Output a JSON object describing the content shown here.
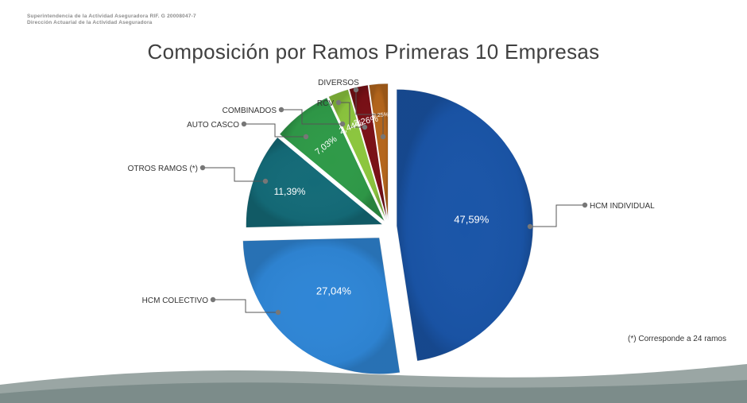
{
  "header": {
    "line1": "Superintendencia de la Actividad Aseguradora RIF. G 20008047-7",
    "line2": "Dirección Actuarial de la Actividad Aseguradora"
  },
  "footnote": "(*) Corresponde a 24 ramos",
  "chart_data": {
    "type": "pie",
    "title": "Composición por Ramos Primeras 10 Empresas",
    "slices": [
      {
        "label": "HCM INDIVIDUAL",
        "value": 47.59,
        "value_label": "47,59%",
        "color": "#1a55a8"
      },
      {
        "label": "HCM COLECTIVO",
        "value": 27.04,
        "value_label": "27,04%",
        "color": "#2f86d6"
      },
      {
        "label": "OTROS RAMOS (*)",
        "value": 11.39,
        "value_label": "11,39%",
        "color": "#146b78"
      },
      {
        "label": "AUTO CASCO",
        "value": 7.03,
        "value_label": "7,03%",
        "color": "#2f9a48"
      },
      {
        "label": "COMBINADOS",
        "value": 2.44,
        "value_label": "2,44%",
        "color": "#8cc63e"
      },
      {
        "label": "RCV",
        "value": 2.26,
        "value_label": "2,26%",
        "color": "#7a1016"
      },
      {
        "label": "DIVERSOS",
        "value": 2.25,
        "value_label": "2,25%",
        "color": "#b5661c"
      }
    ],
    "legend": "none (callout labels)"
  }
}
